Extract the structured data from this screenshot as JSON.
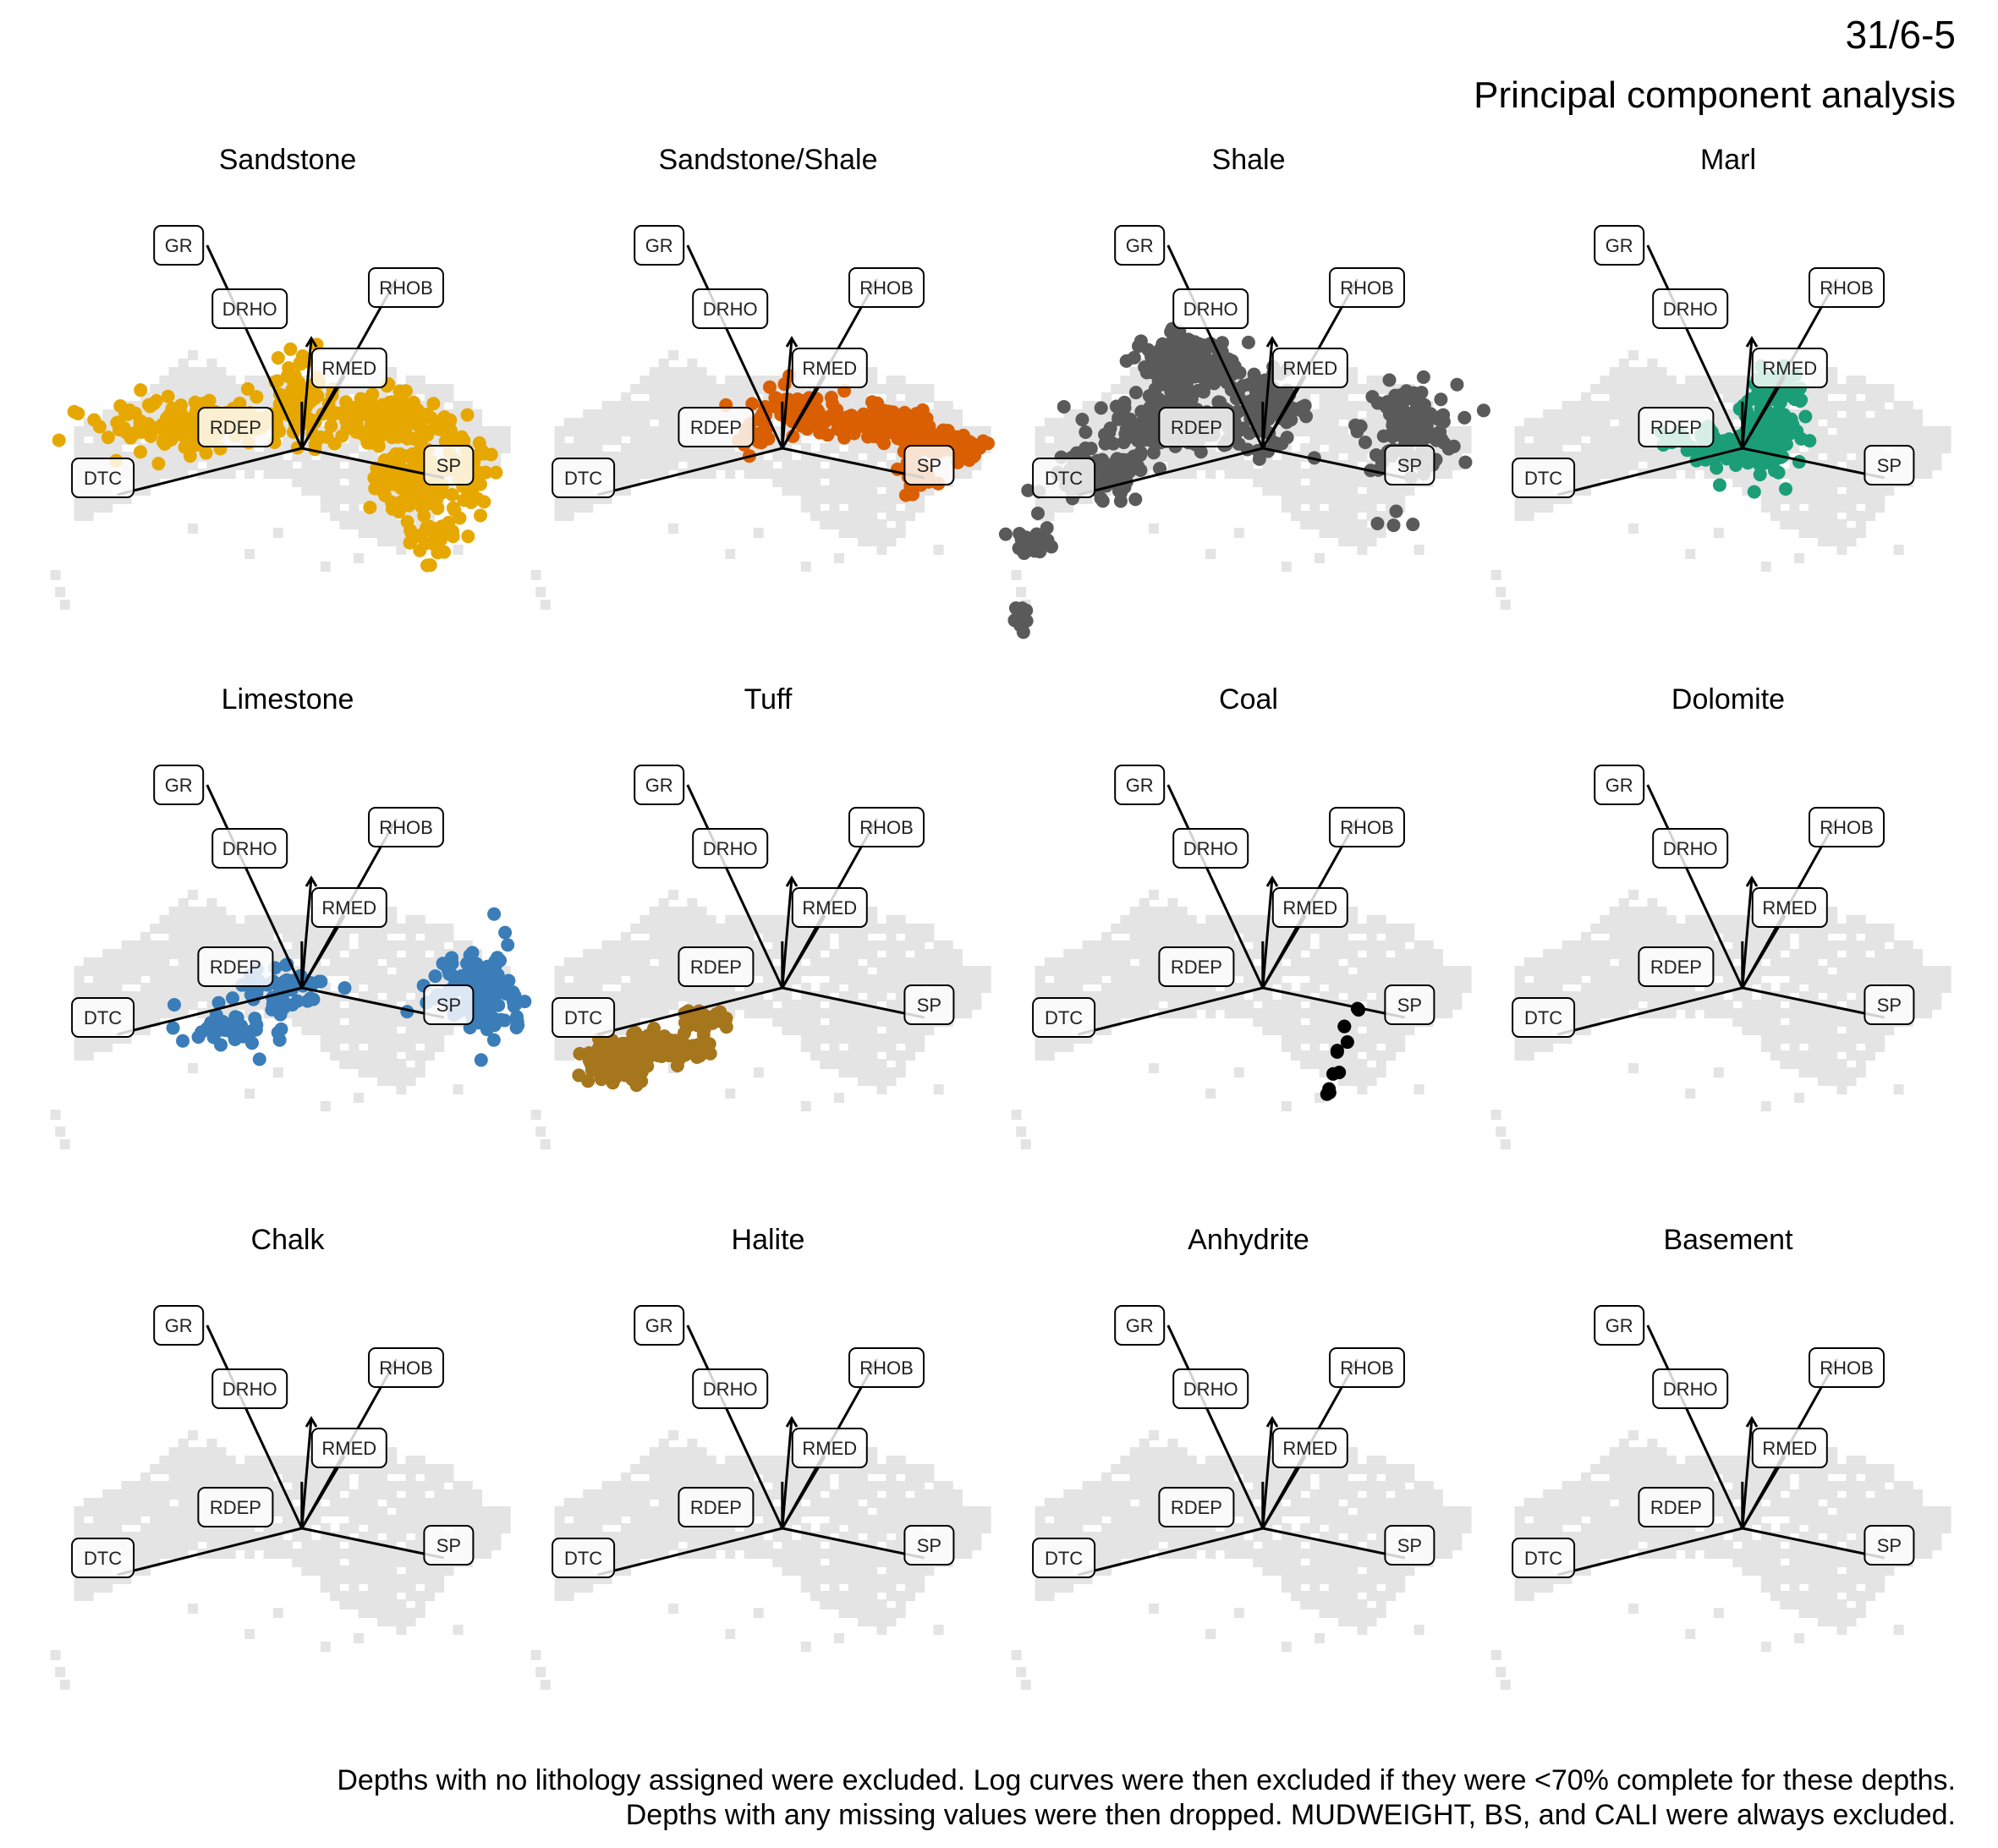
{
  "well_name": "31/6-5",
  "subtitle": "Principal component analysis",
  "caption": [
    "Depths with no lithology assigned were excluded. Log curves were then excluded if they were <70% complete for these depths.",
    "Depths with any missing values were then dropped. MUDWEIGHT, BS, and CALI were always excluded."
  ],
  "colors": {
    "background_points": "#e4e4e4",
    "Sandstone": "#e6a800",
    "Sandstone/Shale": "#d95f02",
    "Shale": "#5a5a5a",
    "Marl": "#1b9e77",
    "Limestone": "#3a7db8",
    "Tuff": "#a6761d",
    "Coal": "#000000",
    "Dolomite": "#e7298a",
    "Chalk": "#66a61e",
    "Halite": "#7570b3",
    "Anhydrite": "#e6ab02",
    "Basement": "#999999"
  },
  "chart_data": {
    "type": "scatter",
    "description": "PCA biplot repeated per lithology; grey = all depths, colored = depths of given lithology",
    "xlim": [
      -5,
      5
    ],
    "ylim": [
      -5,
      5
    ],
    "loadings": [
      {
        "name": "GR",
        "x": -1.7,
        "y": 4.6
      },
      {
        "name": "DRHO",
        "x": 0.5,
        "y": 2.4
      },
      {
        "name": "RHOB",
        "x": 2.3,
        "y": 3.8
      },
      {
        "name": "RMED",
        "x": 1.2,
        "y": 1.5
      },
      {
        "name": "RDEP",
        "x": 0.3,
        "y": 0.9
      },
      {
        "name": "DTC",
        "x": -3.6,
        "y": -1.3
      },
      {
        "name": "SP",
        "x": 3.3,
        "y": -0.9
      }
    ],
    "label_positions": [
      {
        "name": "GR",
        "x": -2.3,
        "y": 4.6
      },
      {
        "name": "DRHO",
        "x": -0.8,
        "y": 3.1
      },
      {
        "name": "RHOB",
        "x": 2.5,
        "y": 3.6
      },
      {
        "name": "RMED",
        "x": 1.3,
        "y": 1.7
      },
      {
        "name": "RDEP",
        "x": -1.1,
        "y": 0.3
      },
      {
        "name": "DTC",
        "x": -3.9,
        "y": -0.9
      },
      {
        "name": "SP",
        "x": 3.4,
        "y": -0.6
      }
    ],
    "all_points_outline": [
      [
        -4.6,
        -1.9
      ],
      [
        -4.4,
        0.4
      ],
      [
        -3.2,
        1.0
      ],
      [
        -2.0,
        2.1
      ],
      [
        -1.0,
        1.4
      ],
      [
        0.4,
        1.6
      ],
      [
        1.6,
        1.8
      ],
      [
        2.7,
        1.5
      ],
      [
        3.6,
        1.2
      ],
      [
        4.2,
        0.4
      ],
      [
        4.8,
        0.2
      ],
      [
        4.5,
        -0.7
      ],
      [
        3.4,
        -1.3
      ],
      [
        2.5,
        -2.7
      ],
      [
        1.2,
        -2.0
      ],
      [
        0.2,
        -1.0
      ],
      [
        -1.2,
        -0.9
      ],
      [
        -2.6,
        -1.0
      ],
      [
        -3.8,
        -1.7
      ]
    ],
    "panels": [
      {
        "title": "Sandstone",
        "clusters": [
          {
            "cx": -2.0,
            "cy": 0.4,
            "rx": 1.6,
            "ry": 0.6,
            "n": 160
          },
          {
            "cx": 0.2,
            "cy": 0.9,
            "rx": 0.6,
            "ry": 1.1,
            "n": 70
          },
          {
            "cx": 2.0,
            "cy": 0.4,
            "rx": 1.3,
            "ry": 0.6,
            "n": 150
          },
          {
            "cx": 3.0,
            "cy": -0.9,
            "rx": 1.0,
            "ry": 0.9,
            "n": 170
          },
          {
            "cx": 3.1,
            "cy": -2.3,
            "rx": 0.4,
            "ry": 0.5,
            "n": 30
          }
        ]
      },
      {
        "title": "Sandstone/Shale",
        "clusters": [
          {
            "cx": 0.6,
            "cy": 0.8,
            "rx": 0.9,
            "ry": 0.4,
            "n": 60
          },
          {
            "cx": 2.2,
            "cy": 0.4,
            "rx": 1.0,
            "ry": 0.4,
            "n": 80
          },
          {
            "cx": 3.6,
            "cy": -0.1,
            "rx": 1.0,
            "ry": 0.3,
            "n": 80
          },
          {
            "cx": 3.1,
            "cy": -0.9,
            "rx": 0.4,
            "ry": 0.4,
            "n": 30
          },
          {
            "cx": -0.3,
            "cy": 0.0,
            "rx": 0.3,
            "ry": 0.3,
            "n": 15
          }
        ]
      },
      {
        "title": "Shale",
        "clusters": [
          {
            "cx": -1.3,
            "cy": 1.8,
            "rx": 0.9,
            "ry": 0.6,
            "n": 160
          },
          {
            "cx": -1.6,
            "cy": 0.4,
            "rx": 1.2,
            "ry": 0.6,
            "n": 180
          },
          {
            "cx": 0.4,
            "cy": 0.7,
            "rx": 0.8,
            "ry": 0.8,
            "n": 90
          },
          {
            "cx": -3.2,
            "cy": -0.9,
            "rx": 1.0,
            "ry": 0.6,
            "n": 90
          },
          {
            "cx": -4.5,
            "cy": -2.4,
            "rx": 0.4,
            "ry": 0.3,
            "n": 25
          },
          {
            "cx": 3.4,
            "cy": 0.3,
            "rx": 0.9,
            "ry": 0.9,
            "n": 120
          },
          {
            "cx": -4.8,
            "cy": -4.2,
            "rx": 0.12,
            "ry": 0.35,
            "n": 25
          },
          {
            "cx": 3.0,
            "cy": -2.0,
            "rx": 0.5,
            "ry": 0.3,
            "n": 3
          }
        ]
      },
      {
        "title": "Marl",
        "clusters": [
          {
            "cx": 0.8,
            "cy": 0.2,
            "rx": 0.6,
            "ry": 0.9,
            "n": 120
          },
          {
            "cx": -0.3,
            "cy": -0.2,
            "rx": 0.8,
            "ry": 0.4,
            "n": 80
          },
          {
            "cx": 1.0,
            "cy": 1.3,
            "rx": 0.4,
            "ry": 0.4,
            "n": 30
          }
        ]
      },
      {
        "title": "Limestone",
        "clusters": [
          {
            "cx": -1.3,
            "cy": -1.2,
            "rx": 1.0,
            "ry": 0.4,
            "n": 40
          },
          {
            "cx": -0.1,
            "cy": -0.2,
            "rx": 0.8,
            "ry": 0.5,
            "n": 50
          },
          {
            "cx": 4.0,
            "cy": -0.3,
            "rx": 0.8,
            "ry": 0.9,
            "n": 130
          }
        ]
      },
      {
        "title": "Tuff",
        "clusters": [
          {
            "cx": -2.3,
            "cy": -1.6,
            "rx": 0.9,
            "ry": 0.3,
            "n": 130
          },
          {
            "cx": -3.2,
            "cy": -1.9,
            "rx": 0.6,
            "ry": 0.5,
            "n": 90
          },
          {
            "cx": -1.4,
            "cy": -0.9,
            "rx": 0.4,
            "ry": 0.25,
            "n": 40
          }
        ]
      },
      {
        "title": "Coal",
        "clusters": [
          {
            "cx": 2.3,
            "cy": -0.7,
            "rx": 0.05,
            "ry": 0.05,
            "n": 2
          },
          {
            "cx": 2.0,
            "cy": -1.1,
            "rx": 0.05,
            "ry": 0.05,
            "n": 2
          },
          {
            "cx": 1.9,
            "cy": -1.7,
            "rx": 0.05,
            "ry": 0.05,
            "n": 2
          },
          {
            "cx": 2.1,
            "cy": -1.5,
            "rx": 0.05,
            "ry": 0.05,
            "n": 1
          },
          {
            "cx": 1.8,
            "cy": -2.2,
            "rx": 0.05,
            "ry": 0.05,
            "n": 2
          },
          {
            "cx": 1.7,
            "cy": -2.7,
            "rx": 0.05,
            "ry": 0.1,
            "n": 3
          }
        ]
      },
      {
        "title": "Dolomite",
        "clusters": []
      },
      {
        "title": "Chalk",
        "clusters": []
      },
      {
        "title": "Halite",
        "clusters": []
      },
      {
        "title": "Anhydrite",
        "clusters": []
      },
      {
        "title": "Basement",
        "clusters": []
      }
    ]
  }
}
